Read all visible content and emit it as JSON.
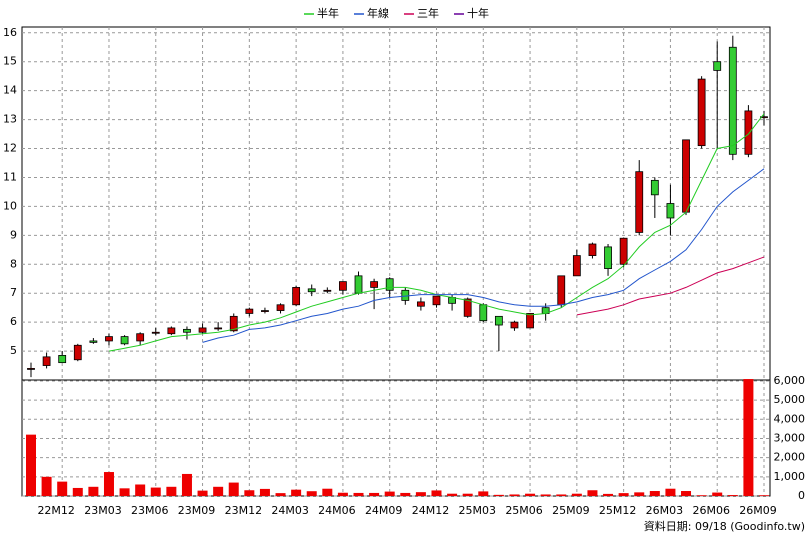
{
  "chart_data": [
    {
      "type": "candlestick",
      "open": [
        4.4,
        4.5,
        4.85,
        4.7,
        5.35,
        5.35,
        5.5,
        5.35,
        5.65,
        5.6,
        5.75,
        5.65,
        5.8,
        5.7,
        6.3,
        6.4,
        6.4,
        6.6,
        7.15,
        7.1,
        7.1,
        7.6,
        7.2,
        7.5,
        7.1,
        6.55,
        6.6,
        6.85,
        6.2,
        6.6,
        6.2,
        5.8,
        5.8,
        6.5,
        6.6,
        7.6,
        8.3,
        8.6,
        8.0,
        9.1,
        10.9,
        10.1,
        9.8,
        12.1,
        15.0,
        15.5,
        11.8,
        13.1
      ],
      "high": [
        4.6,
        4.95,
        5.0,
        5.25,
        5.45,
        5.6,
        5.55,
        5.65,
        5.8,
        5.85,
        5.85,
        5.95,
        6.0,
        6.3,
        6.5,
        6.5,
        6.65,
        7.25,
        7.3,
        7.2,
        7.4,
        7.75,
        7.5,
        7.55,
        7.2,
        6.85,
        6.9,
        6.95,
        6.85,
        6.65,
        6.2,
        6.05,
        6.3,
        6.65,
        7.6,
        8.5,
        8.75,
        8.7,
        8.9,
        11.6,
        11.0,
        10.75,
        12.3,
        14.5,
        15.7,
        15.9,
        13.5,
        13.3
      ],
      "low": [
        4.1,
        4.4,
        4.6,
        4.65,
        5.25,
        5.2,
        5.2,
        5.2,
        5.55,
        5.55,
        5.4,
        5.6,
        5.7,
        5.65,
        6.2,
        6.3,
        6.3,
        6.55,
        6.9,
        7.0,
        6.95,
        6.95,
        6.45,
        6.85,
        6.6,
        6.4,
        6.5,
        6.4,
        6.15,
        6.0,
        5.0,
        5.7,
        5.8,
        6.05,
        6.5,
        7.6,
        8.2,
        7.6,
        7.9,
        9.0,
        9.6,
        9.0,
        9.7,
        12.0,
        12.0,
        11.6,
        11.7,
        12.8
      ],
      "close": [
        4.4,
        4.8,
        4.6,
        5.2,
        5.3,
        5.5,
        5.25,
        5.6,
        5.65,
        5.8,
        5.65,
        5.8,
        5.8,
        6.2,
        6.45,
        6.4,
        6.6,
        7.2,
        7.05,
        7.1,
        7.4,
        7.0,
        7.4,
        7.1,
        6.75,
        6.7,
        6.9,
        6.65,
        6.8,
        6.05,
        5.9,
        6.0,
        6.3,
        6.3,
        7.6,
        8.3,
        8.7,
        7.85,
        8.9,
        11.2,
        10.4,
        9.6,
        12.3,
        14.4,
        14.7,
        11.8,
        13.3,
        13.1
      ],
      "up_color": "#cc0000",
      "down_color": "#33cc33",
      "series": [
        {
          "name": "半年",
          "color": "#22cc22",
          "values": [
            null,
            null,
            null,
            null,
            null,
            5.0,
            5.1,
            5.2,
            5.35,
            5.5,
            5.55,
            5.6,
            5.65,
            5.75,
            5.9,
            6.0,
            6.15,
            6.35,
            6.55,
            6.7,
            6.85,
            7.0,
            7.1,
            7.2,
            7.2,
            7.1,
            6.95,
            6.85,
            6.75,
            6.6,
            6.45,
            6.35,
            6.25,
            6.3,
            6.5,
            6.85,
            7.2,
            7.5,
            7.95,
            8.6,
            9.1,
            9.35,
            9.8,
            10.9,
            12.0,
            12.1,
            12.5,
            13.2
          ]
        },
        {
          "name": "年線",
          "color": "#2255cc",
          "values": [
            null,
            null,
            null,
            null,
            null,
            null,
            null,
            null,
            null,
            null,
            null,
            5.3,
            5.45,
            5.55,
            5.75,
            5.8,
            5.9,
            6.05,
            6.2,
            6.3,
            6.45,
            6.55,
            6.75,
            6.85,
            6.9,
            6.95,
            6.95,
            6.95,
            6.95,
            6.85,
            6.7,
            6.6,
            6.55,
            6.55,
            6.6,
            6.7,
            6.85,
            6.95,
            7.1,
            7.5,
            7.8,
            8.1,
            8.5,
            9.2,
            10.0,
            10.5,
            10.9,
            11.3
          ]
        },
        {
          "name": "三年",
          "color": "#cc0055",
          "values": [
            null,
            null,
            null,
            null,
            null,
            null,
            null,
            null,
            null,
            null,
            null,
            null,
            null,
            null,
            null,
            null,
            null,
            null,
            null,
            null,
            null,
            null,
            null,
            null,
            null,
            null,
            null,
            null,
            null,
            null,
            null,
            null,
            null,
            null,
            null,
            6.25,
            6.35,
            6.45,
            6.6,
            6.8,
            6.9,
            7.0,
            7.2,
            7.45,
            7.7,
            7.85,
            8.05,
            8.25
          ]
        },
        {
          "name": "十年",
          "color": "#660099",
          "values": [
            null,
            null,
            null,
            null,
            null,
            null,
            null,
            null,
            null,
            null,
            null,
            null,
            null,
            null,
            null,
            null,
            null,
            null,
            null,
            null,
            null,
            null,
            null,
            null,
            null,
            null,
            null,
            null,
            null,
            null,
            null,
            null,
            null,
            null,
            null,
            null,
            null,
            null,
            null,
            null,
            null,
            null,
            null,
            null,
            null,
            null,
            null,
            null
          ]
        }
      ],
      "ylim": [
        4,
        16.2
      ],
      "yticks": [
        5,
        6,
        7,
        8,
        9,
        10,
        11,
        12,
        13,
        14,
        15,
        16
      ],
      "grid": true
    },
    {
      "type": "bar",
      "color": "#ee0000",
      "categories": [
        null,
        null,
        "22M12",
        null,
        null,
        "23M03",
        null,
        null,
        "23M06",
        null,
        null,
        "23M09",
        null,
        null,
        "23M12",
        null,
        null,
        "24M03",
        null,
        null,
        "24M06",
        null,
        null,
        "24M09",
        null,
        null,
        "24M12",
        null,
        null,
        "25M03",
        null,
        null,
        "25M06",
        null,
        null,
        "25M09",
        null,
        null,
        "25M12",
        null,
        null,
        "26M03",
        null,
        null,
        "26M06",
        null,
        null,
        "26M09"
      ],
      "values": [
        3200,
        1000,
        750,
        420,
        480,
        1250,
        400,
        600,
        440,
        480,
        1150,
        280,
        480,
        700,
        300,
        370,
        150,
        330,
        250,
        380,
        170,
        160,
        160,
        230,
        160,
        200,
        290,
        120,
        120,
        240,
        60,
        80,
        120,
        80,
        80,
        120,
        300,
        110,
        150,
        190,
        260,
        380,
        260,
        40,
        180,
        50,
        6100,
        40
      ],
      "ylim": [
        0,
        6050
      ],
      "yticks": [
        0,
        {
          "value": 1000,
          "label": "1,000"
        },
        {
          "value": 2000,
          "label": "2,000"
        },
        {
          "value": 3000,
          "label": "3,000"
        },
        {
          "value": 4000,
          "label": "4,000"
        },
        {
          "value": 5000,
          "label": "5,000"
        },
        {
          "value": 6000,
          "label": "6,000"
        }
      ],
      "grid": true
    }
  ],
  "footer": "資料日期: 09/18  (Goodinfo.tw)"
}
